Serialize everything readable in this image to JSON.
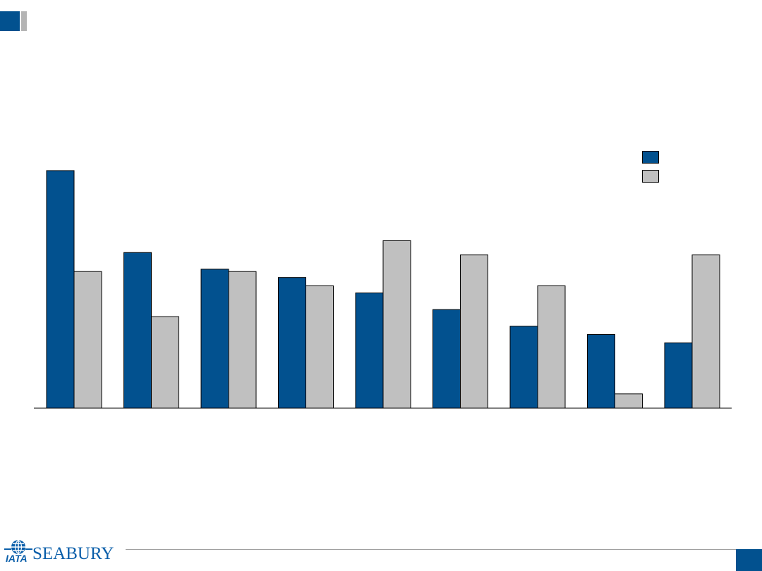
{
  "colors": {
    "series_1": "#02518f",
    "series_2": "#c0c0c0",
    "title_accent": "#02518f",
    "title_accent_secondary": "#b4b4b4"
  },
  "chart_data": {
    "type": "bar",
    "categories": [
      "",
      "",
      "",
      "",
      "",
      "",
      "",
      "",
      ""
    ],
    "series": [
      {
        "color": "#02518f",
        "values": [
          100,
          65.5,
          58.5,
          55.0,
          48.5,
          41.5,
          34.5,
          31.0,
          27.5
        ]
      },
      {
        "color": "#c0c0c0",
        "values": [
          57.5,
          38.5,
          57.5,
          51.5,
          70.5,
          64.5,
          51.5,
          6.0,
          64.5
        ]
      }
    ],
    "ylim": [
      0,
      100
    ],
    "grid": false,
    "legend": {
      "position": "top-right",
      "labels": [
        "",
        ""
      ]
    },
    "title": "",
    "xlabel": "",
    "ylabel": ""
  },
  "footer": {
    "logo_text": "SEABURY",
    "logo_sub_text": "IATA",
    "page_number": ""
  }
}
